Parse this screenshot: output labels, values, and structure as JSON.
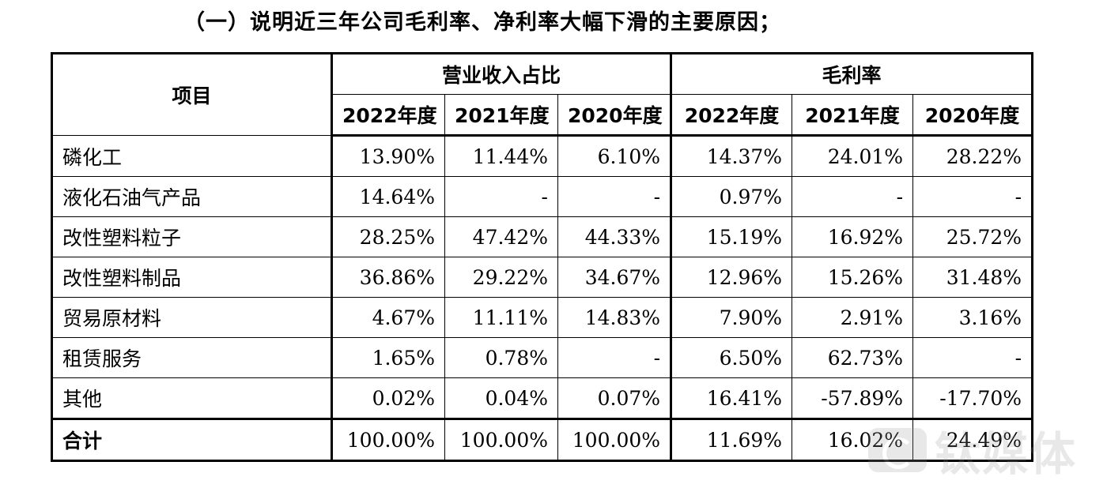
{
  "heading": "（一）说明近三年公司毛利率、净利率大幅下滑的主要原因；",
  "table": {
    "item_header": "项目",
    "group_revenue": "营业收入占比",
    "group_margin": "毛利率",
    "years": [
      "2022年度",
      "2021年度",
      "2020年度",
      "2022年度",
      "2021年度",
      "2020年度"
    ],
    "rows": [
      {
        "label": "磷化工",
        "values": [
          "13.90%",
          "11.44%",
          "6.10%",
          "14.37%",
          "24.01%",
          "28.22%"
        ]
      },
      {
        "label": "液化石油气产品",
        "values": [
          "14.64%",
          "-",
          "-",
          "0.97%",
          "-",
          "-"
        ]
      },
      {
        "label": "改性塑料粒子",
        "values": [
          "28.25%",
          "47.42%",
          "44.33%",
          "15.19%",
          "16.92%",
          "25.72%"
        ]
      },
      {
        "label": "改性塑料制品",
        "values": [
          "36.86%",
          "29.22%",
          "34.67%",
          "12.96%",
          "15.26%",
          "31.48%"
        ]
      },
      {
        "label": "贸易原材料",
        "values": [
          "4.67%",
          "11.11%",
          "14.83%",
          "7.90%",
          "2.91%",
          "3.16%"
        ]
      },
      {
        "label": "租赁服务",
        "values": [
          "1.65%",
          "0.78%",
          "-",
          "6.50%",
          "62.73%",
          "-"
        ]
      },
      {
        "label": "其他",
        "values": [
          "0.02%",
          "0.04%",
          "0.07%",
          "16.41%",
          "-57.89%",
          "-17.70%"
        ]
      }
    ],
    "total": {
      "label": "合计",
      "values": [
        "100.00%",
        "100.00%",
        "100.00%",
        "11.69%",
        "16.02%",
        "24.49%"
      ]
    }
  },
  "watermark": {
    "text": "钛媒体",
    "icon": "tmtpost-logo-icon"
  }
}
